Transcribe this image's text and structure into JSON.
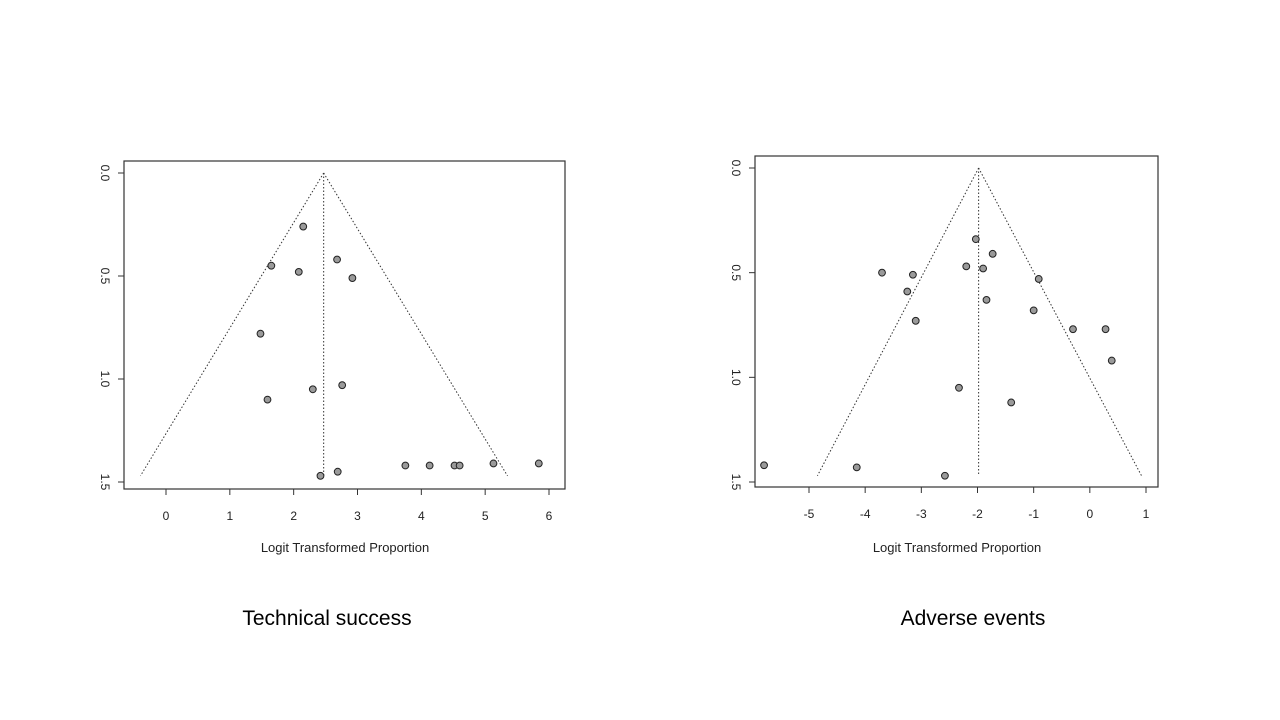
{
  "chart_data": [
    {
      "type": "scatter",
      "subtype": "funnel plot",
      "caption": "Technical success",
      "xlabel": "Logit Transformed Proportion",
      "ylabel": "",
      "x_ticks": [
        0,
        1,
        2,
        3,
        4,
        5,
        6
      ],
      "y_ticks": [
        "0.0",
        "0.5",
        "1.0",
        "1.5"
      ],
      "y_reversed": true,
      "xlim": [
        -0.65,
        6.2
      ],
      "ylim": [
        0.0,
        1.5
      ],
      "funnel_center": 2.47,
      "funnel_left_bottom": -0.4,
      "funnel_right_bottom": 5.35,
      "funnel_bottom_y": 1.47,
      "points": [
        {
          "x": 2.15,
          "y": 0.26
        },
        {
          "x": 1.65,
          "y": 0.45
        },
        {
          "x": 2.08,
          "y": 0.48
        },
        {
          "x": 2.68,
          "y": 0.42
        },
        {
          "x": 2.92,
          "y": 0.51
        },
        {
          "x": 1.48,
          "y": 0.78
        },
        {
          "x": 2.3,
          "y": 1.05
        },
        {
          "x": 2.76,
          "y": 1.03
        },
        {
          "x": 1.59,
          "y": 1.1
        },
        {
          "x": 2.42,
          "y": 1.47
        },
        {
          "x": 2.69,
          "y": 1.45
        },
        {
          "x": 3.75,
          "y": 1.42
        },
        {
          "x": 4.13,
          "y": 1.42
        },
        {
          "x": 4.52,
          "y": 1.42
        },
        {
          "x": 4.6,
          "y": 1.42
        },
        {
          "x": 5.13,
          "y": 1.41
        },
        {
          "x": 5.84,
          "y": 1.41
        }
      ],
      "grid": false,
      "point_color": "#9a9a9a"
    },
    {
      "type": "scatter",
      "subtype": "funnel plot",
      "caption": "Adverse events",
      "xlabel": "Logit Transformed Proportion",
      "ylabel": "",
      "x_ticks": [
        -5,
        -4,
        -3,
        -2,
        -1,
        0,
        1
      ],
      "y_ticks": [
        "0.0",
        "0.5",
        "1.0",
        "1.5"
      ],
      "y_reversed": true,
      "xlim": [
        -5.9,
        1.2
      ],
      "ylim": [
        0.0,
        1.5
      ],
      "funnel_center": -1.98,
      "funnel_left_bottom": -4.85,
      "funnel_right_bottom": 0.92,
      "funnel_bottom_y": 1.47,
      "points": [
        {
          "x": -2.03,
          "y": 0.34
        },
        {
          "x": -1.73,
          "y": 0.41
        },
        {
          "x": -3.7,
          "y": 0.5
        },
        {
          "x": -3.15,
          "y": 0.51
        },
        {
          "x": -2.2,
          "y": 0.47
        },
        {
          "x": -1.9,
          "y": 0.48
        },
        {
          "x": -0.91,
          "y": 0.53
        },
        {
          "x": -3.25,
          "y": 0.59
        },
        {
          "x": -1.84,
          "y": 0.63
        },
        {
          "x": -1.0,
          "y": 0.68
        },
        {
          "x": -3.1,
          "y": 0.73
        },
        {
          "x": -0.3,
          "y": 0.77
        },
        {
          "x": 0.28,
          "y": 0.77
        },
        {
          "x": 0.39,
          "y": 0.92
        },
        {
          "x": -2.33,
          "y": 1.05
        },
        {
          "x": -1.4,
          "y": 1.12
        },
        {
          "x": -5.8,
          "y": 1.42
        },
        {
          "x": -4.15,
          "y": 1.43
        },
        {
          "x": -2.58,
          "y": 1.47
        }
      ],
      "grid": false,
      "point_color": "#9a9a9a"
    }
  ]
}
